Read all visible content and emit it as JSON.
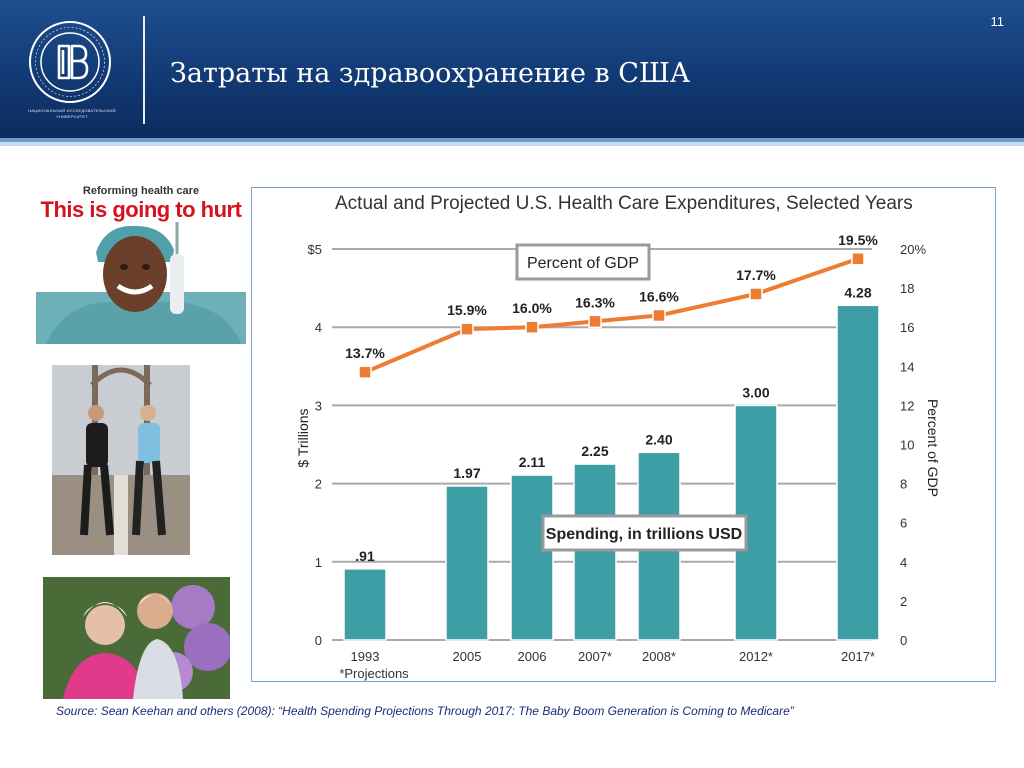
{
  "header": {
    "title": "Затраты на здравоохранение в США",
    "page_number": "11",
    "logo_caption": "НАЦИОНАЛЬНЫЙ ИССЛЕДОВАТЕЛЬСКИЙ УНИВЕРСИТЕТ"
  },
  "photos": {
    "magazine_top": "Reforming health care",
    "magazine_headline": "This is going to hurt"
  },
  "source": "Source: Sean Keehan and others (2008): “Health Spending Projections Through 2017: The Baby Boom Generation is Coming to Medicare”",
  "colors": {
    "header": "#123a75",
    "bar": "#3e9ea6",
    "line": "#ef7c33",
    "source_text": "#1c2b7a"
  },
  "chart_data": {
    "type": "bar",
    "title": "Actual and Projected U.S. Health Care Expenditures, Selected Years",
    "categories": [
      "1993",
      "2005",
      "2006",
      "2007*",
      "2008*",
      "2012*",
      "2017*"
    ],
    "x_note": "*Projections",
    "series": [
      {
        "name": "Spending, in trillions USD",
        "type": "bar",
        "axis": "left",
        "values": [
          0.91,
          1.97,
          2.11,
          2.25,
          2.4,
          3.0,
          4.28
        ],
        "labels": [
          ".91",
          "1.97",
          "2.11",
          "2.25",
          "2.40",
          "3.00",
          "4.28"
        ]
      },
      {
        "name": "Percent of GDP",
        "type": "line",
        "axis": "right",
        "values": [
          13.7,
          15.9,
          16.0,
          16.3,
          16.6,
          17.7,
          19.5
        ],
        "labels": [
          "13.7%",
          "15.9%",
          "16.0%",
          "16.3%",
          "16.6%",
          "17.7%",
          "19.5%"
        ]
      }
    ],
    "ylabel": "$ Trillions",
    "ylim": [
      0,
      5
    ],
    "y_ticks": [
      0,
      1,
      2,
      3,
      4,
      5
    ],
    "y_tick_labels": [
      "0",
      "1",
      "2",
      "3",
      "4",
      "$5"
    ],
    "y2label": "Percent of GDP",
    "y2lim": [
      0,
      20
    ],
    "y2_ticks": [
      0,
      2,
      4,
      6,
      8,
      10,
      12,
      14,
      16,
      18,
      20
    ],
    "y2_tick_labels": [
      "0",
      "2",
      "4",
      "6",
      "8",
      "10",
      "12",
      "14",
      "16",
      "18",
      "20%"
    ],
    "grid": true
  }
}
